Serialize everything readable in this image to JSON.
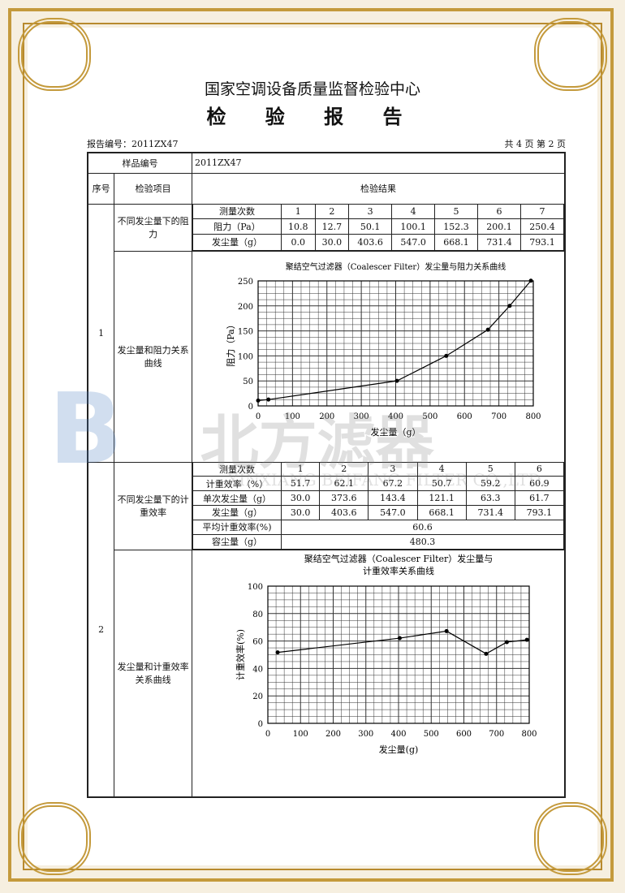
{
  "header": {
    "org": "国家空调设备质量监督检验中心",
    "title": "检 验 报 告",
    "report_no": "报告编号：2011ZX47",
    "page_info": "共 4 页 第 2 页"
  },
  "table": {
    "sample_label": "样品编号",
    "sample_value": "2011ZX47",
    "col_no": "序号",
    "col_item": "检验项目",
    "col_result": "检验结果",
    "s1": {
      "no": "1",
      "item1": "不同发尘量下的阻力",
      "item2": "发尘量和阻力关系曲线",
      "rows": [
        [
          "测量次数",
          "1",
          "2",
          "3",
          "4",
          "5",
          "6",
          "7"
        ],
        [
          "阻力（Pa）",
          "10.8",
          "12.7",
          "50.1",
          "100.1",
          "152.3",
          "200.1",
          "250.4"
        ],
        [
          "发尘量（g）",
          "0.0",
          "30.0",
          "403.6",
          "547.0",
          "668.1",
          "731.4",
          "793.1"
        ]
      ]
    },
    "s2": {
      "no": "2",
      "item1": "不同发尘量下的计重效率",
      "item2": "发尘量和计重效率关系曲线",
      "rows": [
        [
          "测量次数",
          "1",
          "2",
          "3",
          "4",
          "5",
          "6"
        ],
        [
          "计重效率（%）",
          "51.7",
          "62.1",
          "67.2",
          "50.7",
          "59.2",
          "60.9"
        ],
        [
          "单次发尘量（g）",
          "30.0",
          "373.6",
          "143.4",
          "121.1",
          "63.3",
          "61.7"
        ],
        [
          "发尘量（g）",
          "30.0",
          "403.6",
          "547.0",
          "668.1",
          "731.4",
          "793.1"
        ]
      ],
      "avg_label": "平均计重效率(%)",
      "avg_value": "60.6",
      "cap_label": "容尘量（g）",
      "cap_value": "480.3"
    }
  },
  "watermark": {
    "brand": "北方滤器",
    "company": "XINXIANG BEIFANG FILTER CO.,LTD."
  },
  "chart_data": [
    {
      "type": "line",
      "title": "聚结空气过滤器（Coalescer Filter）发尘量与阻力关系曲线",
      "xlabel": "发尘量（g）",
      "ylabel": "阻力（Pa）",
      "xlim": [
        0,
        800
      ],
      "ylim": [
        0,
        250
      ],
      "xticks": [
        0,
        100,
        200,
        300,
        400,
        500,
        600,
        700,
        800
      ],
      "yticks": [
        0,
        50,
        100,
        150,
        200,
        250
      ],
      "grid": true,
      "x": [
        0,
        30,
        403.6,
        547,
        668.1,
        731.4,
        793.1
      ],
      "y": [
        10.8,
        12.7,
        50.1,
        100.1,
        152.3,
        200.1,
        250.4
      ]
    },
    {
      "type": "line",
      "title": "聚结空气过滤器（Coalescer Filter）发尘量与计重效率关系曲线",
      "title_lines": [
        "聚结空气过滤器（Coalescer Filter）发尘量与",
        "计重效率关系曲线"
      ],
      "xlabel": "发尘量(g)",
      "ylabel": "计重效率(%)",
      "xlim": [
        0,
        800
      ],
      "ylim": [
        0,
        100
      ],
      "xticks": [
        0,
        100,
        200,
        300,
        400,
        500,
        600,
        700,
        800
      ],
      "yticks": [
        0,
        20,
        40,
        60,
        80,
        100
      ],
      "grid": true,
      "x": [
        30,
        403.6,
        547,
        668.1,
        731.4,
        793.1
      ],
      "y": [
        51.7,
        62.1,
        67.2,
        50.7,
        59.2,
        60.9
      ]
    }
  ]
}
